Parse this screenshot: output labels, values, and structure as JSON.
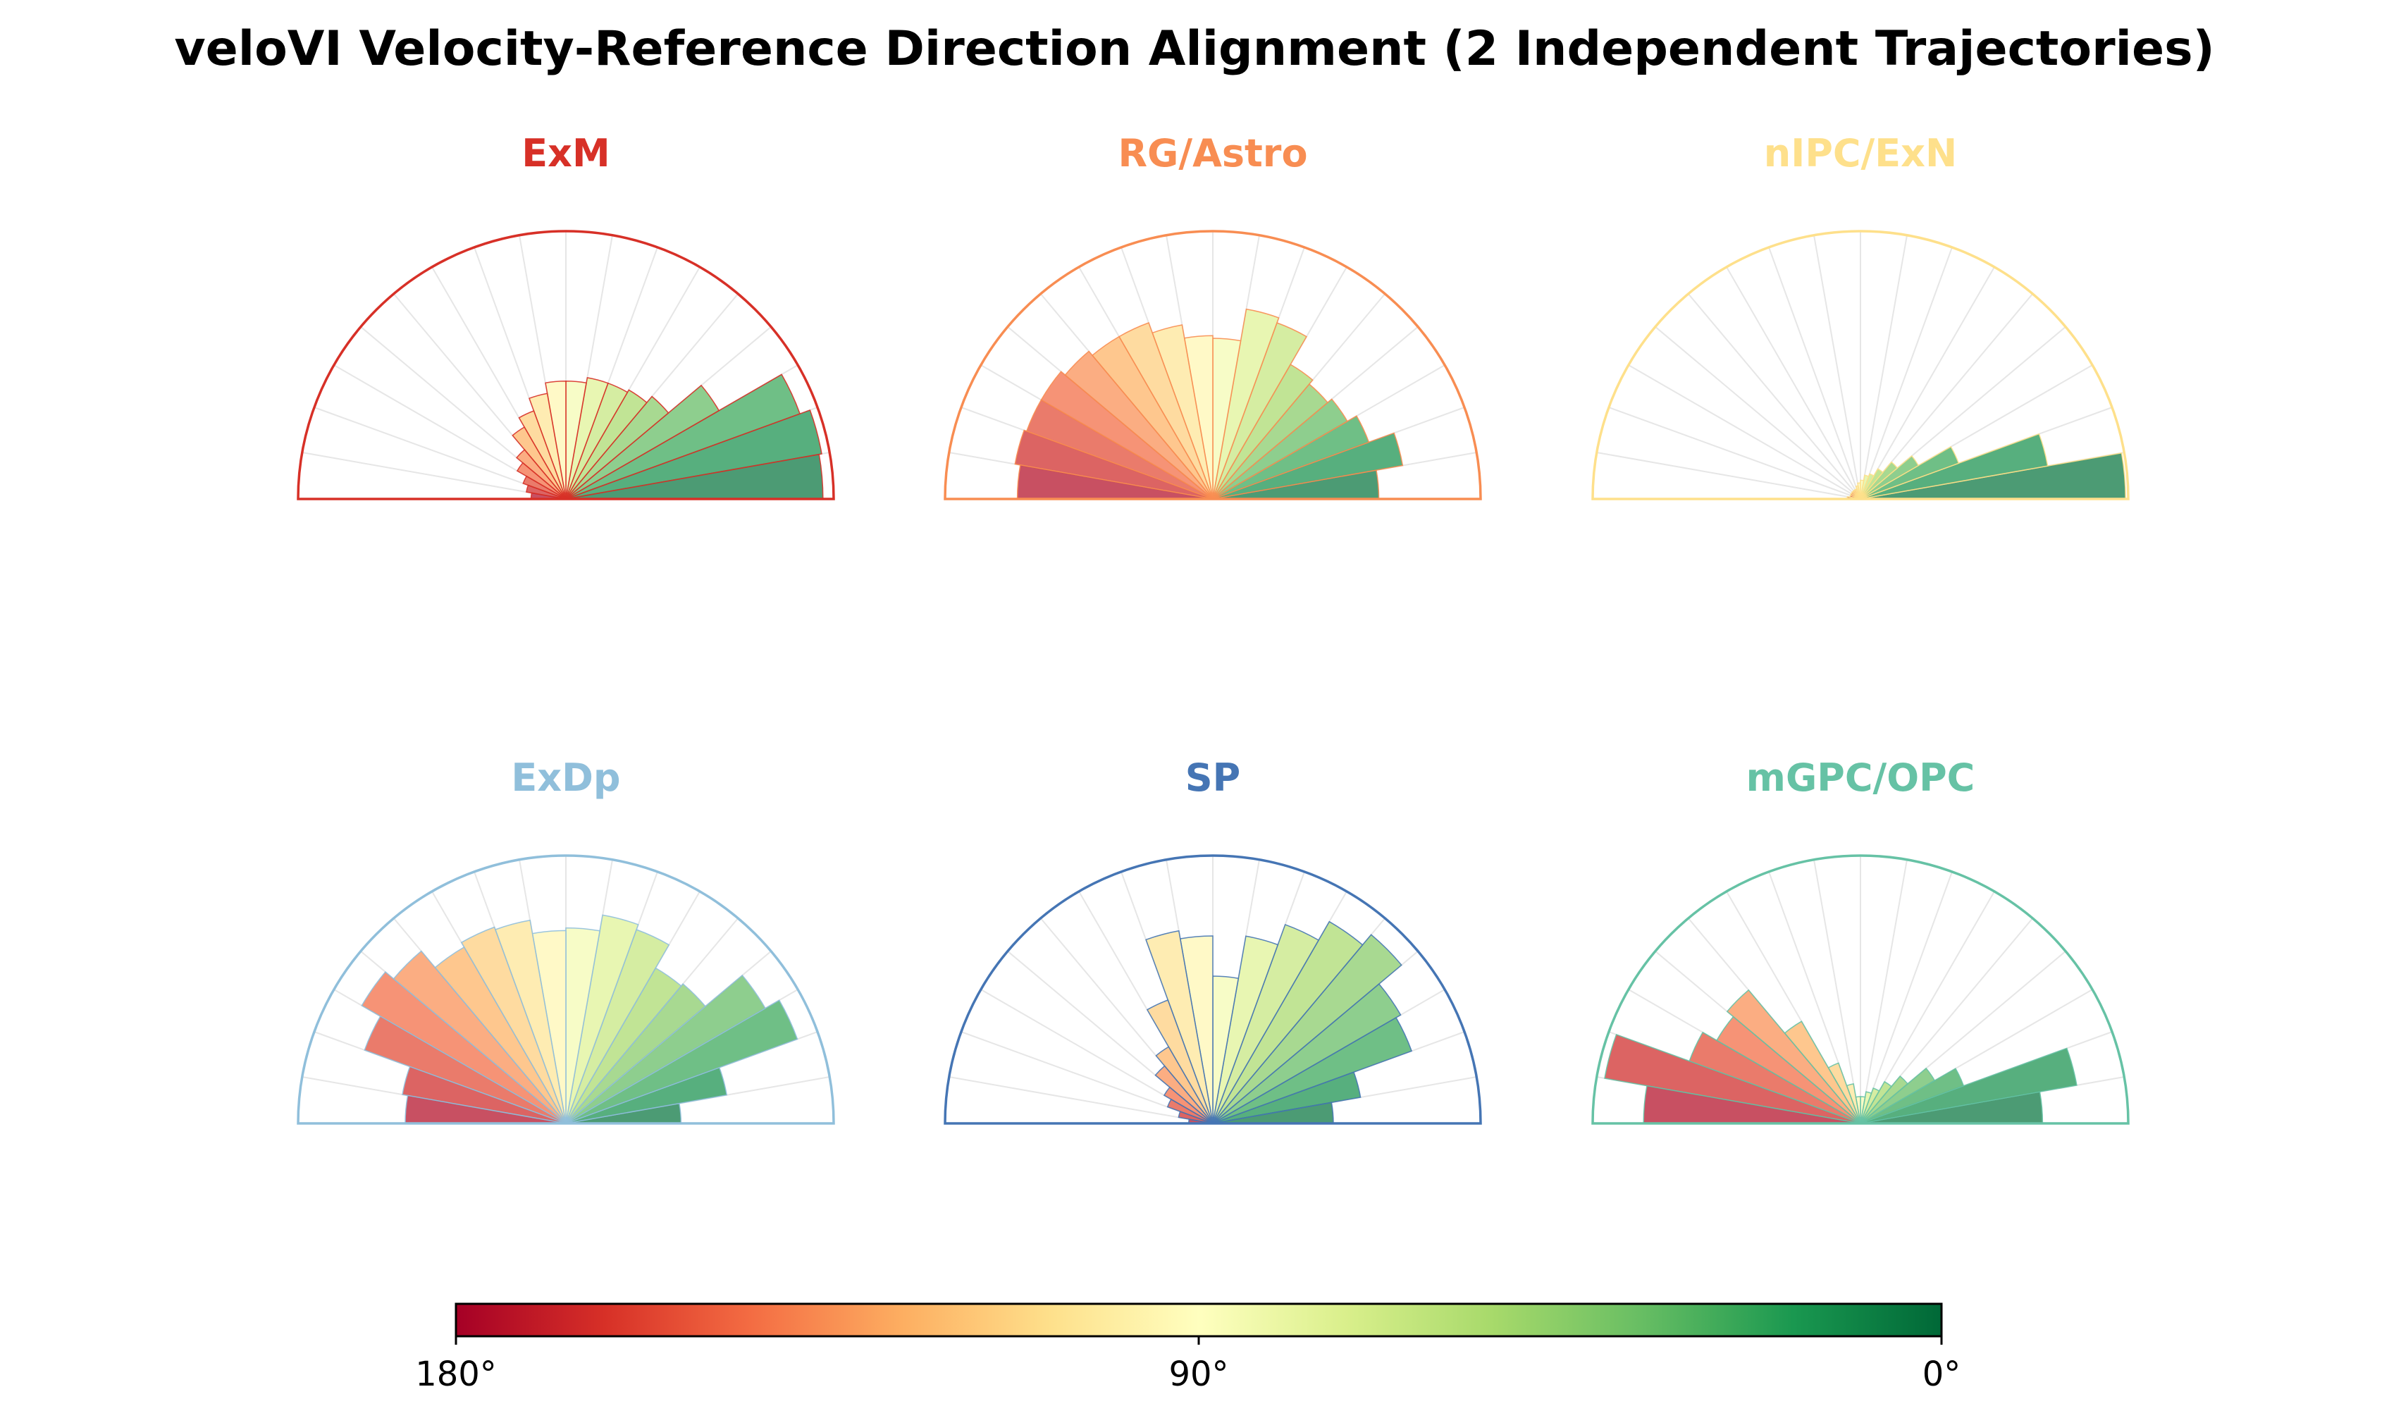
{
  "title": "veloVI Velocity-Reference Direction Alignment (2 Independent Trajectories)",
  "colorbar": {
    "colormap": "RdYlGn",
    "stops": [
      "#a50026",
      "#d73027",
      "#f46d43",
      "#fdae61",
      "#fee08b",
      "#ffffbf",
      "#d9ef8b",
      "#a6d96a",
      "#66bd63",
      "#1a9850",
      "#006837"
    ],
    "tick_labels": [
      "180°",
      "90°",
      "0°"
    ],
    "range_degrees": [
      180,
      0
    ]
  },
  "chart_data": {
    "type": "polar-half-histogram",
    "angle_range_degrees": [
      0,
      180
    ],
    "bin_width_degrees": 10,
    "bin_centers_degrees": [
      5,
      15,
      25,
      35,
      45,
      55,
      65,
      75,
      85,
      95,
      105,
      115,
      125,
      135,
      145,
      155,
      165,
      175
    ],
    "radial_limit": 1.0,
    "bar_color_rule": "RdYlGn colormap: 0° green, 90° yellow, 180° red",
    "panels": [
      {
        "name": "ExM",
        "color": "#d73027",
        "values": [
          0.96,
          0.97,
          0.93,
          0.66,
          0.5,
          0.47,
          0.46,
          0.46,
          0.44,
          0.44,
          0.4,
          0.35,
          0.31,
          0.24,
          0.21,
          0.17,
          0.15,
          0.13
        ]
      },
      {
        "name": "RG/Astro",
        "color": "#f88d52",
        "values": [
          0.62,
          0.72,
          0.62,
          0.58,
          0.56,
          0.58,
          0.7,
          0.72,
          0.6,
          0.61,
          0.66,
          0.7,
          0.7,
          0.72,
          0.74,
          0.74,
          0.75,
          0.73
        ]
      },
      {
        "name": "nIPC/ExN",
        "color": "#fee08b",
        "values": [
          0.99,
          0.71,
          0.39,
          0.25,
          0.18,
          0.13,
          0.1,
          0.09,
          0.07,
          0.06,
          0.05,
          0.04,
          0.04,
          0.04,
          0.04,
          0.04,
          0.04,
          0.05
        ]
      },
      {
        "name": "ExDp",
        "color": "#90bfdb",
        "values": [
          0.43,
          0.61,
          0.92,
          0.86,
          0.68,
          0.67,
          0.77,
          0.79,
          0.73,
          0.72,
          0.77,
          0.78,
          0.76,
          0.84,
          0.88,
          0.8,
          0.62,
          0.6
        ]
      },
      {
        "name": "SP",
        "color": "#4575b4",
        "values": [
          0.45,
          0.56,
          0.79,
          0.81,
          0.92,
          0.87,
          0.79,
          0.71,
          0.55,
          0.7,
          0.73,
          0.49,
          0.33,
          0.28,
          0.21,
          0.18,
          0.13,
          0.09
        ]
      },
      {
        "name": "mGPC/OPC",
        "color": "#66c2a5",
        "values": [
          0.68,
          0.82,
          0.41,
          0.32,
          0.23,
          0.18,
          0.14,
          0.12,
          0.1,
          0.1,
          0.15,
          0.24,
          0.44,
          0.65,
          0.62,
          0.68,
          0.97,
          0.81
        ]
      }
    ]
  }
}
